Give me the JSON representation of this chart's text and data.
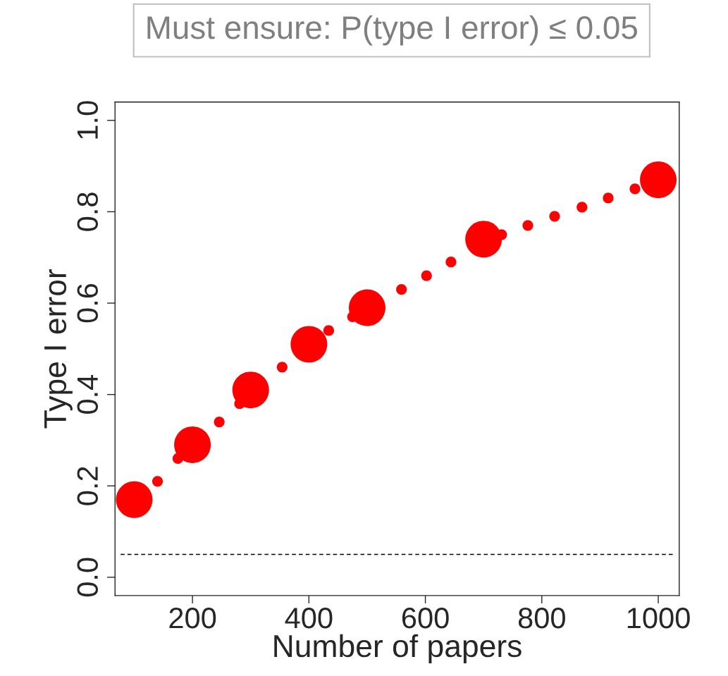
{
  "chart_data": {
    "type": "scatter",
    "title": "Must ensure: P(type I error) ≤ 0.05",
    "xlabel": "Number of papers",
    "ylabel": "Type I error",
    "series": [
      {
        "color": "#ff0000",
        "x": [
          100,
          200,
          300,
          400,
          500,
          700,
          1000
        ],
        "values": [
          0.17,
          0.29,
          0.41,
          0.51,
          0.59,
          0.74,
          0.87
        ]
      },
      {
        "color": "#ff0000",
        "x": [
          140,
          175,
          246,
          281,
          354,
          434,
          475,
          559,
          602,
          644,
          731,
          776,
          822,
          869,
          914,
          960
        ],
        "values": [
          0.21,
          0.26,
          0.34,
          0.38,
          0.46,
          0.54,
          0.57,
          0.63,
          0.66,
          0.69,
          0.75,
          0.77,
          0.79,
          0.81,
          0.83,
          0.85
        ]
      }
    ],
    "xlim": [
      67,
      1036
    ],
    "xticks": [
      200,
      400,
      600,
      800,
      1000
    ],
    "ylim": [
      -0.04,
      1.04
    ],
    "yticks": [
      {
        "value": 0,
        "label": "0.0"
      },
      0.2,
      0.4,
      0.6,
      0.8,
      {
        "value": 1,
        "label": "1.0"
      }
    ],
    "ref_lines": [
      {
        "axis": "y",
        "value": 0.05,
        "line_style": "dashed",
        "color": "#000000"
      }
    ],
    "grid": false,
    "legend": false,
    "marker": "circle"
  }
}
